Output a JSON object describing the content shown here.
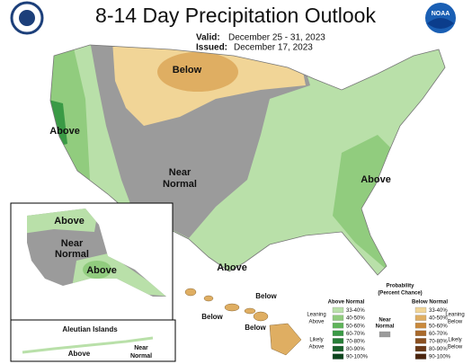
{
  "header": {
    "title": "8-14 Day Precipitation Outlook",
    "valid_label": "Valid:",
    "valid": "December 25 - 31, 2023",
    "issued_label": "Issued:",
    "issued": "December 17, 2023",
    "logo": "NOAA"
  },
  "conus_labels": {
    "north": "Below",
    "west": "Above",
    "center": [
      "Near",
      "Normal"
    ],
    "southeast": "Above",
    "gulf": "Above"
  },
  "alaska_labels": {
    "north": "Above",
    "center": [
      "Near",
      "Normal"
    ],
    "south": "Above"
  },
  "hawaii_labels": [
    "Below",
    "Below",
    "Below"
  ],
  "aleutian": {
    "title": "Aleutian Islands",
    "above": "Above",
    "near": [
      "Near",
      "Normal"
    ]
  },
  "legend": {
    "title": [
      "Probability",
      "(Percent Chance)"
    ],
    "above_heading": "Above Normal",
    "below_heading": "Below Normal",
    "near_heading": [
      "Near",
      "Normal"
    ],
    "leaning_above": [
      "Leaning",
      "Above"
    ],
    "likely_above": [
      "Likely",
      "Above"
    ],
    "leaning_below": [
      "Leaning",
      "Below"
    ],
    "likely_below": [
      "Likely",
      "Below"
    ],
    "above_items": [
      {
        "range": "33-40%",
        "color": "#b9e0a9"
      },
      {
        "range": "40-50%",
        "color": "#91cc7e"
      },
      {
        "range": "50-60%",
        "color": "#5fb45a"
      },
      {
        "range": "60-70%",
        "color": "#3a9a45"
      },
      {
        "range": "70-80%",
        "color": "#267d37"
      },
      {
        "range": "80-90%",
        "color": "#17612a"
      },
      {
        "range": "90-100%",
        "color": "#0c451d"
      }
    ],
    "below_items": [
      {
        "range": "33-40%",
        "color": "#f1d597"
      },
      {
        "range": "40-50%",
        "color": "#dfae62"
      },
      {
        "range": "50-60%",
        "color": "#c9893c"
      },
      {
        "range": "60-70%",
        "color": "#a9692b"
      },
      {
        "range": "70-80%",
        "color": "#8a4f20"
      },
      {
        "range": "80-90%",
        "color": "#6b3816"
      },
      {
        "range": "90-100%",
        "color": "#4b240d"
      }
    ],
    "near_color": "#9b9b9b"
  }
}
